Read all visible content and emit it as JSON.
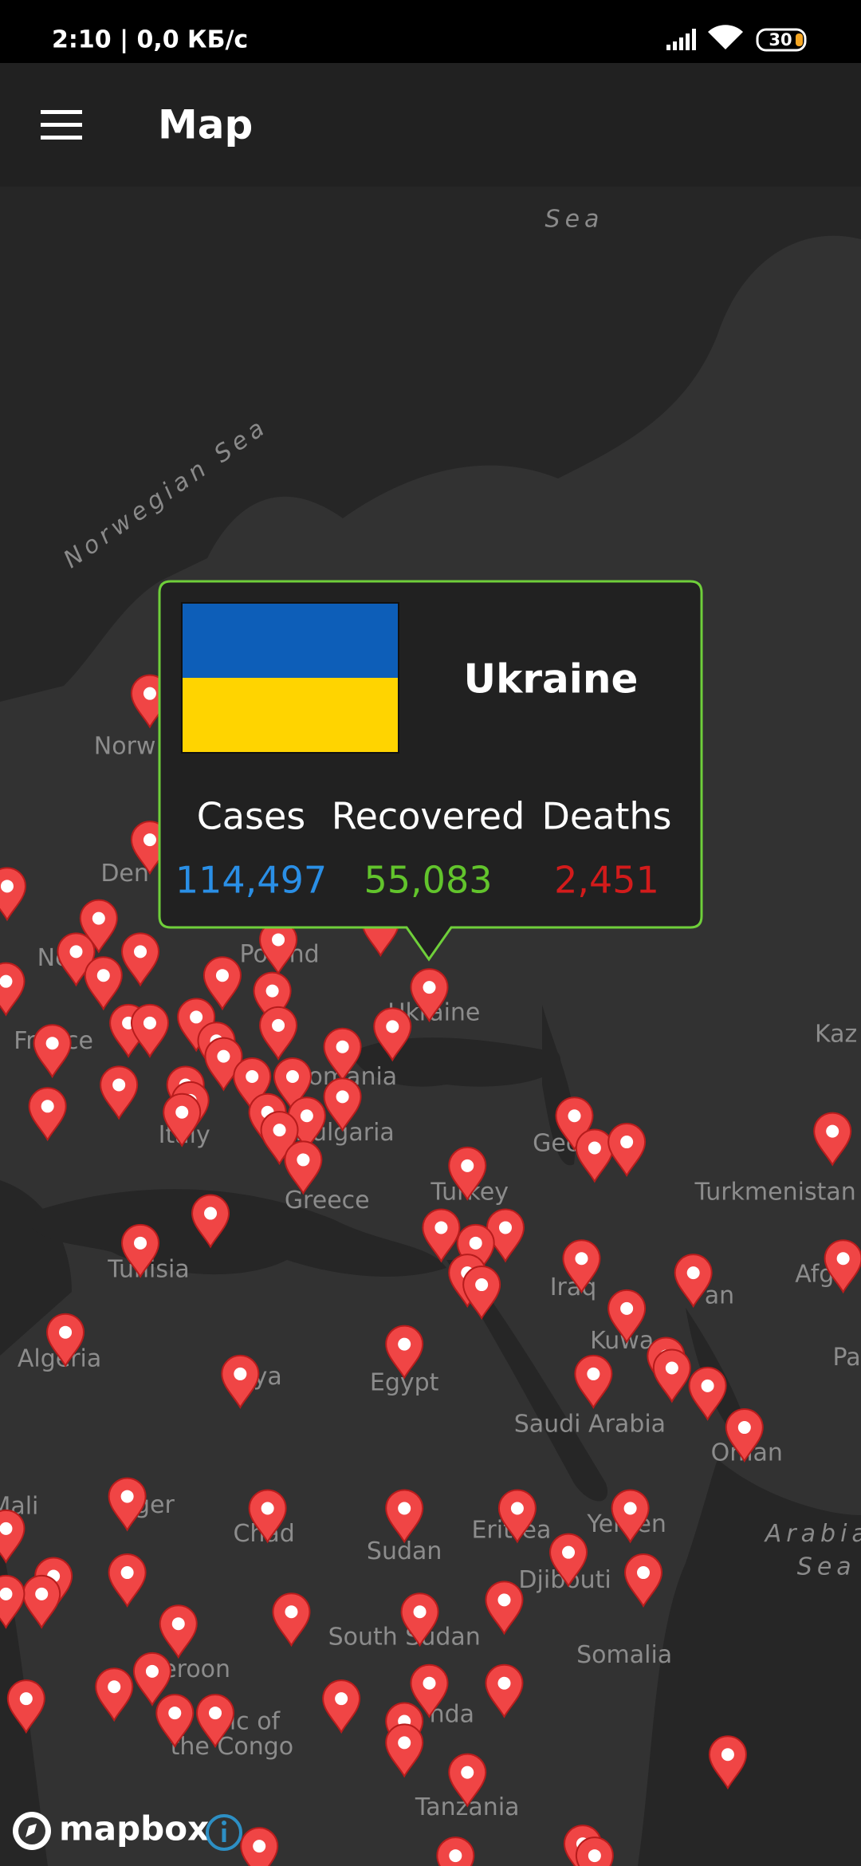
{
  "status_bar": {
    "time_and_speed": "2:10 | 0,0 КБ/с",
    "battery": "30"
  },
  "app_bar": {
    "title": "Map"
  },
  "map": {
    "labels": [
      "Sea",
      "Norwegian Sea",
      "Norw",
      "Den",
      "Ne",
      "Poland",
      "Ukraine",
      "France",
      "Romania",
      "Bulgaria",
      "Italy",
      "Greece",
      "Turkey",
      "Geo",
      "Kaz",
      "Turkmenistan",
      "Afg",
      "Pa",
      "an",
      "Iraq",
      "Kuwa",
      "Tunisia",
      "Algeria",
      "ya",
      "Egypt",
      "Saudi Arabia",
      "Oman",
      "Mali",
      "ger",
      "Chad",
      "Sudan",
      "Eritrea",
      "Yemen",
      "Djibouti",
      "Arabia",
      "Sea",
      "South Sudan",
      "Somalia",
      "eroon",
      "blic of",
      "the Congo",
      "nda",
      "Tanzania"
    ]
  },
  "popup": {
    "country": "Ukraine",
    "stats": [
      {
        "label": "Cases",
        "value": "114,497"
      },
      {
        "label": "Recovered",
        "value": "55,083"
      },
      {
        "label": "Deaths",
        "value": "2,451"
      }
    ]
  },
  "attribution": {
    "logo": "mapbox"
  }
}
